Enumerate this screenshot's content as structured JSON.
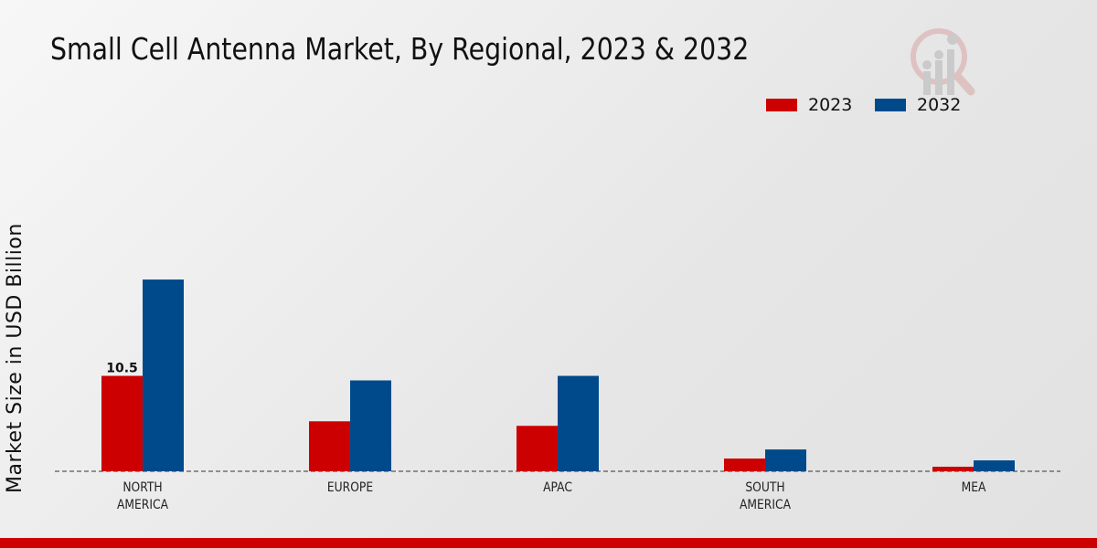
{
  "chart_data": {
    "type": "bar",
    "title": "Small Cell Antenna Market, By Regional, 2023 & 2032",
    "ylabel": "Market Size in USD Billion",
    "xlabel": "",
    "categories": [
      "NORTH AMERICA",
      "EUROPE",
      "APAC",
      "SOUTH AMERICA",
      "MEA"
    ],
    "category_lines": [
      [
        "NORTH",
        "AMERICA"
      ],
      [
        "EUROPE"
      ],
      [
        "APAC"
      ],
      [
        "SOUTH",
        "AMERICA"
      ],
      [
        "MEA"
      ]
    ],
    "series": [
      {
        "name": "2023",
        "color": "#cc0000",
        "values": [
          10.5,
          5.5,
          5.0,
          1.4,
          0.5
        ]
      },
      {
        "name": "2032",
        "color": "#004a8c",
        "values": [
          21.1,
          10.0,
          10.5,
          2.4,
          1.2
        ]
      }
    ],
    "data_labels": [
      {
        "series": 0,
        "index": 0,
        "text": "10.5"
      }
    ],
    "legend_position": "top-right",
    "grid": false
  }
}
